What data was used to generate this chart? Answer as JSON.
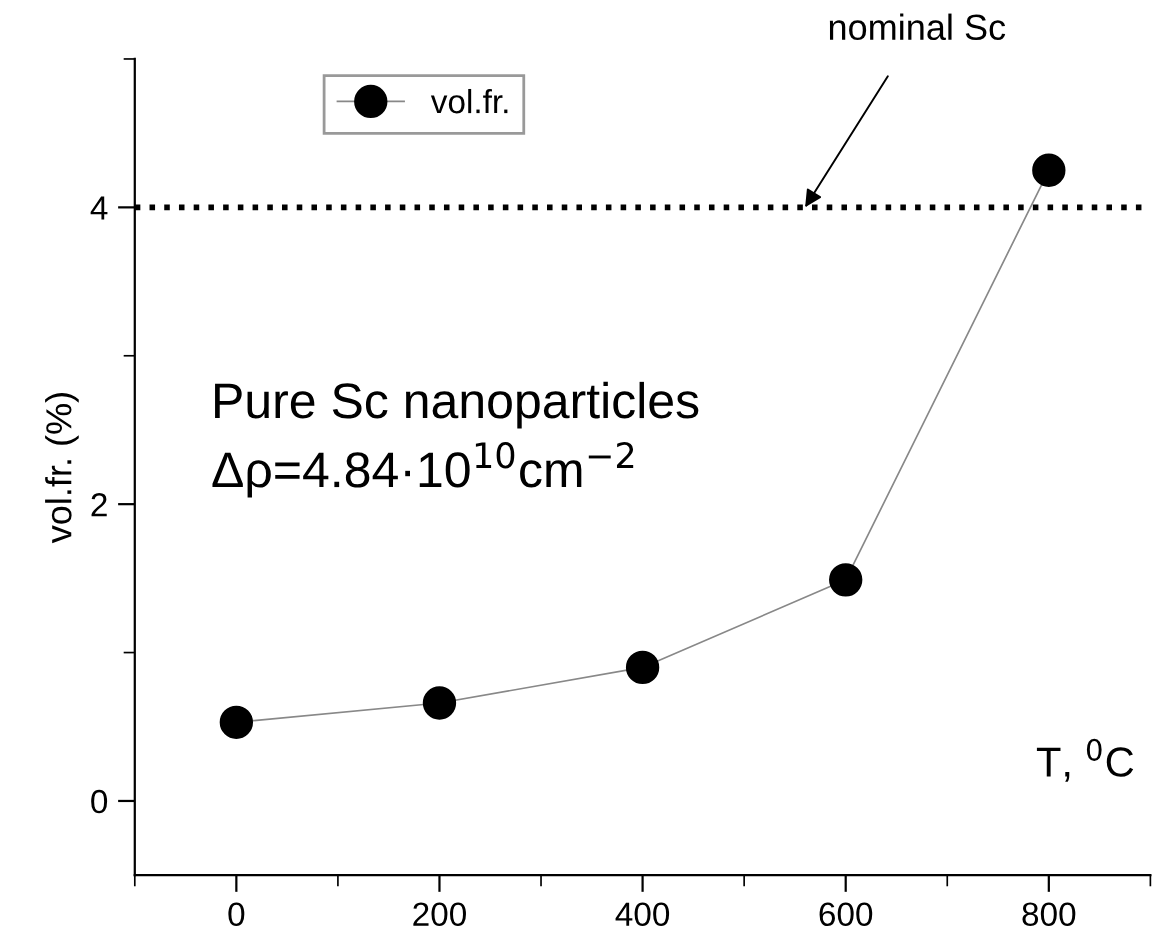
{
  "chart_data": {
    "type": "line",
    "xlabel": "T, $^{0}$C",
    "ylabel": "vol.fr. (%)",
    "x": [
      0,
      200,
      400,
      600,
      800
    ],
    "series": [
      {
        "name": "vol.fr.",
        "color": "#000000",
        "values": [
          0.53,
          0.66,
          0.9,
          1.49,
          4.25
        ]
      }
    ],
    "xlim": [
      -100,
      900
    ],
    "xticks": [
      0,
      200,
      400,
      600,
      800
    ],
    "ylim": [
      -0.5,
      5
    ],
    "yticks": [
      0,
      2,
      4
    ],
    "ref_lines": [
      {
        "axis": "y",
        "value": 4,
        "label": null,
        "color": "#000000",
        "line_style": "dotted"
      }
    ],
    "annotations": [
      {
        "text": "nominal Sc",
        "x": 560,
        "y": 4
      },
      "Pure Sc nanoparticles",
      "Δρ=4.84·10$^{10}$cm$^{−2}$"
    ],
    "marker": "circle",
    "line_style": "solid",
    "grid": false,
    "legend": "top left"
  }
}
